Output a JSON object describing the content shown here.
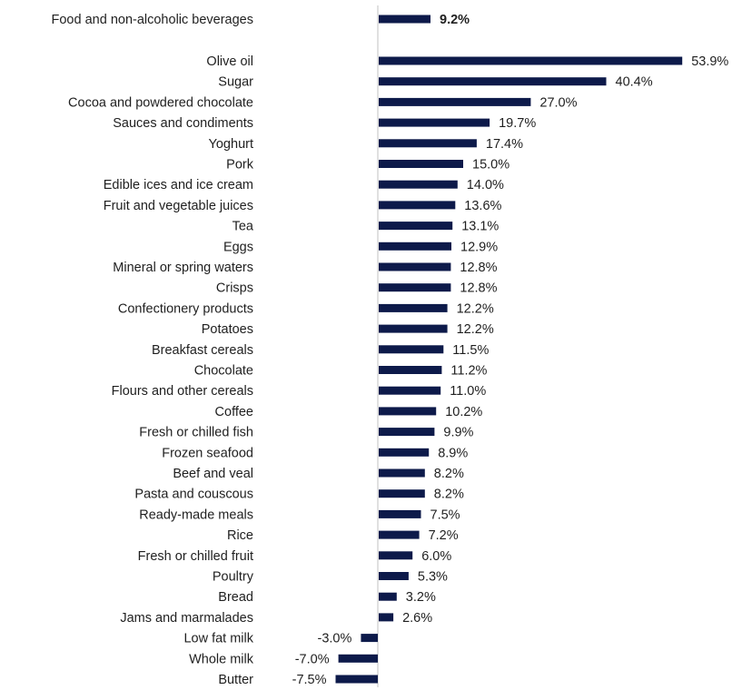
{
  "chart_data": {
    "type": "bar",
    "orientation": "horizontal",
    "title": "",
    "xlabel": "",
    "ylabel": "",
    "grid": false,
    "legend": "none",
    "bar_color": "#0d1a4a",
    "axis_color": "#c0c0c0",
    "xlim": [
      -10,
      58
    ],
    "highlight": {
      "category": "Food and non-alcoholic beverages",
      "value": 9.2,
      "label": "9.2%"
    },
    "categories": [
      "Olive oil",
      "Sugar",
      "Cocoa and powdered chocolate",
      "Sauces and condiments",
      "Yoghurt",
      "Pork",
      "Edible ices and ice cream",
      "Fruit and vegetable juices",
      "Tea",
      "Eggs",
      "Mineral or spring waters",
      "Crisps",
      "Confectionery products",
      "Potatoes",
      "Breakfast cereals",
      "Chocolate",
      "Flours and other cereals",
      "Coffee",
      "Fresh or chilled fish",
      "Frozen seafood",
      "Beef and veal",
      "Pasta and couscous",
      "Ready-made meals",
      "Rice",
      "Fresh or chilled fruit",
      "Poultry",
      "Bread",
      "Jams and marmalades",
      "Low fat milk",
      "Whole milk",
      "Butter"
    ],
    "values": [
      53.9,
      40.4,
      27.0,
      19.7,
      17.4,
      15.0,
      14.0,
      13.6,
      13.1,
      12.9,
      12.8,
      12.8,
      12.2,
      12.2,
      11.5,
      11.2,
      11.0,
      10.2,
      9.9,
      8.9,
      8.2,
      8.2,
      7.5,
      7.2,
      6.0,
      5.3,
      3.2,
      2.6,
      -3.0,
      -7.0,
      -7.5
    ],
    "labels": [
      "53.9%",
      "40.4%",
      "27.0%",
      "19.7%",
      "17.4%",
      "15.0%",
      "14.0%",
      "13.6%",
      "13.1%",
      "12.9%",
      "12.8%",
      "12.8%",
      "12.2%",
      "12.2%",
      "11.5%",
      "11.2%",
      "11.0%",
      "10.2%",
      "9.9%",
      "8.9%",
      "8.2%",
      "8.2%",
      "7.5%",
      "7.2%",
      "6.0%",
      "5.3%",
      "3.2%",
      "2.6%",
      "-3.0%",
      "-7.0%",
      "-7.5%"
    ]
  }
}
